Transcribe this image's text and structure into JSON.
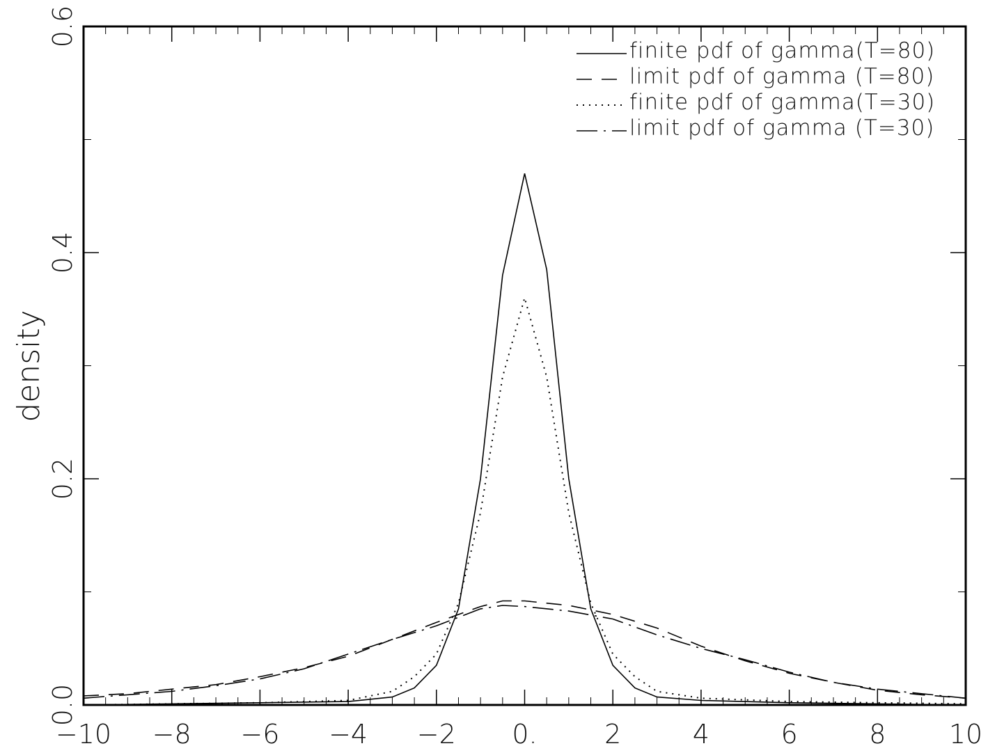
{
  "chart_data": {
    "type": "line",
    "title": "",
    "xlabel": "",
    "ylabel": "density",
    "xlim": [
      -10,
      10
    ],
    "ylim": [
      0,
      0.6
    ],
    "grid": false,
    "legend_position": "top-right",
    "x_ticks": [
      {
        "value": -10,
        "label": "−10"
      },
      {
        "value": -8,
        "label": "−8"
      },
      {
        "value": -6,
        "label": "−6"
      },
      {
        "value": -4,
        "label": "−4"
      },
      {
        "value": -2,
        "label": "−2"
      },
      {
        "value": 0,
        "label": "0."
      },
      {
        "value": 2,
        "label": "2"
      },
      {
        "value": 4,
        "label": "4"
      },
      {
        "value": 6,
        "label": "6"
      },
      {
        "value": 8,
        "label": "8"
      },
      {
        "value": 10,
        "label": "10"
      }
    ],
    "y_ticks": [
      {
        "value": 0,
        "label": "0.0"
      },
      {
        "value": 0.2,
        "label": "0.2"
      },
      {
        "value": 0.4,
        "label": "0.4"
      },
      {
        "value": 0.6,
        "label": "0.6"
      }
    ],
    "series": [
      {
        "name": "finite pdf of gamma(T=80)",
        "style": "solid",
        "color": "#000000",
        "points": [
          [
            -10,
            0
          ],
          [
            -8,
            0.001
          ],
          [
            -6,
            0.002
          ],
          [
            -4,
            0.003
          ],
          [
            -3,
            0.007
          ],
          [
            -2.5,
            0.015
          ],
          [
            -2,
            0.035
          ],
          [
            -1.5,
            0.085
          ],
          [
            -1,
            0.2
          ],
          [
            -0.5,
            0.38
          ],
          [
            0,
            0.47
          ],
          [
            0.5,
            0.385
          ],
          [
            1,
            0.2
          ],
          [
            1.5,
            0.085
          ],
          [
            2,
            0.035
          ],
          [
            2.5,
            0.015
          ],
          [
            3,
            0.007
          ],
          [
            4,
            0.004
          ],
          [
            6,
            0.002
          ],
          [
            8,
            0.001
          ],
          [
            10,
            0
          ]
        ]
      },
      {
        "name": "limit pdf of gamma (T=80)",
        "style": "dash",
        "color": "#000000",
        "points": [
          [
            -10,
            0.008
          ],
          [
            -9,
            0.01
          ],
          [
            -8,
            0.014
          ],
          [
            -7,
            0.018
          ],
          [
            -6,
            0.025
          ],
          [
            -5,
            0.033
          ],
          [
            -4,
            0.043
          ],
          [
            -3,
            0.058
          ],
          [
            -2,
            0.073
          ],
          [
            -1,
            0.087
          ],
          [
            -0.5,
            0.092
          ],
          [
            0,
            0.092
          ],
          [
            1,
            0.088
          ],
          [
            2,
            0.08
          ],
          [
            3,
            0.068
          ],
          [
            4,
            0.052
          ],
          [
            5,
            0.039
          ],
          [
            6,
            0.028
          ],
          [
            7,
            0.02
          ],
          [
            8,
            0.013
          ],
          [
            9,
            0.009
          ],
          [
            10,
            0.006
          ]
        ]
      },
      {
        "name": "finite pdf of gamma(T=30)",
        "style": "dot",
        "color": "#000000",
        "points": [
          [
            -10,
            0
          ],
          [
            -8,
            0.001
          ],
          [
            -6,
            0.002
          ],
          [
            -4,
            0.004
          ],
          [
            -3,
            0.012
          ],
          [
            -2.5,
            0.025
          ],
          [
            -2,
            0.045
          ],
          [
            -1.5,
            0.09
          ],
          [
            -1,
            0.17
          ],
          [
            -0.5,
            0.29
          ],
          [
            0,
            0.36
          ],
          [
            0.5,
            0.29
          ],
          [
            1,
            0.17
          ],
          [
            1.5,
            0.09
          ],
          [
            2,
            0.045
          ],
          [
            2.5,
            0.025
          ],
          [
            3,
            0.012
          ],
          [
            4,
            0.006
          ],
          [
            6,
            0.003
          ],
          [
            8,
            0.002
          ],
          [
            10,
            0.001
          ]
        ]
      },
      {
        "name": "limit pdf of gamma (T=30)",
        "style": "dashdot",
        "color": "#000000",
        "points": [
          [
            -10,
            0.006
          ],
          [
            -9,
            0.009
          ],
          [
            -8,
            0.012
          ],
          [
            -7,
            0.017
          ],
          [
            -6,
            0.023
          ],
          [
            -5,
            0.032
          ],
          [
            -4,
            0.045
          ],
          [
            -3,
            0.058
          ],
          [
            -2,
            0.07
          ],
          [
            -1,
            0.085
          ],
          [
            -0.5,
            0.088
          ],
          [
            0,
            0.087
          ],
          [
            1,
            0.083
          ],
          [
            2,
            0.076
          ],
          [
            3,
            0.062
          ],
          [
            4,
            0.05
          ],
          [
            5,
            0.04
          ],
          [
            6,
            0.029
          ],
          [
            7,
            0.02
          ],
          [
            8,
            0.014
          ],
          [
            9,
            0.01
          ],
          [
            10,
            0.006
          ]
        ]
      }
    ]
  }
}
